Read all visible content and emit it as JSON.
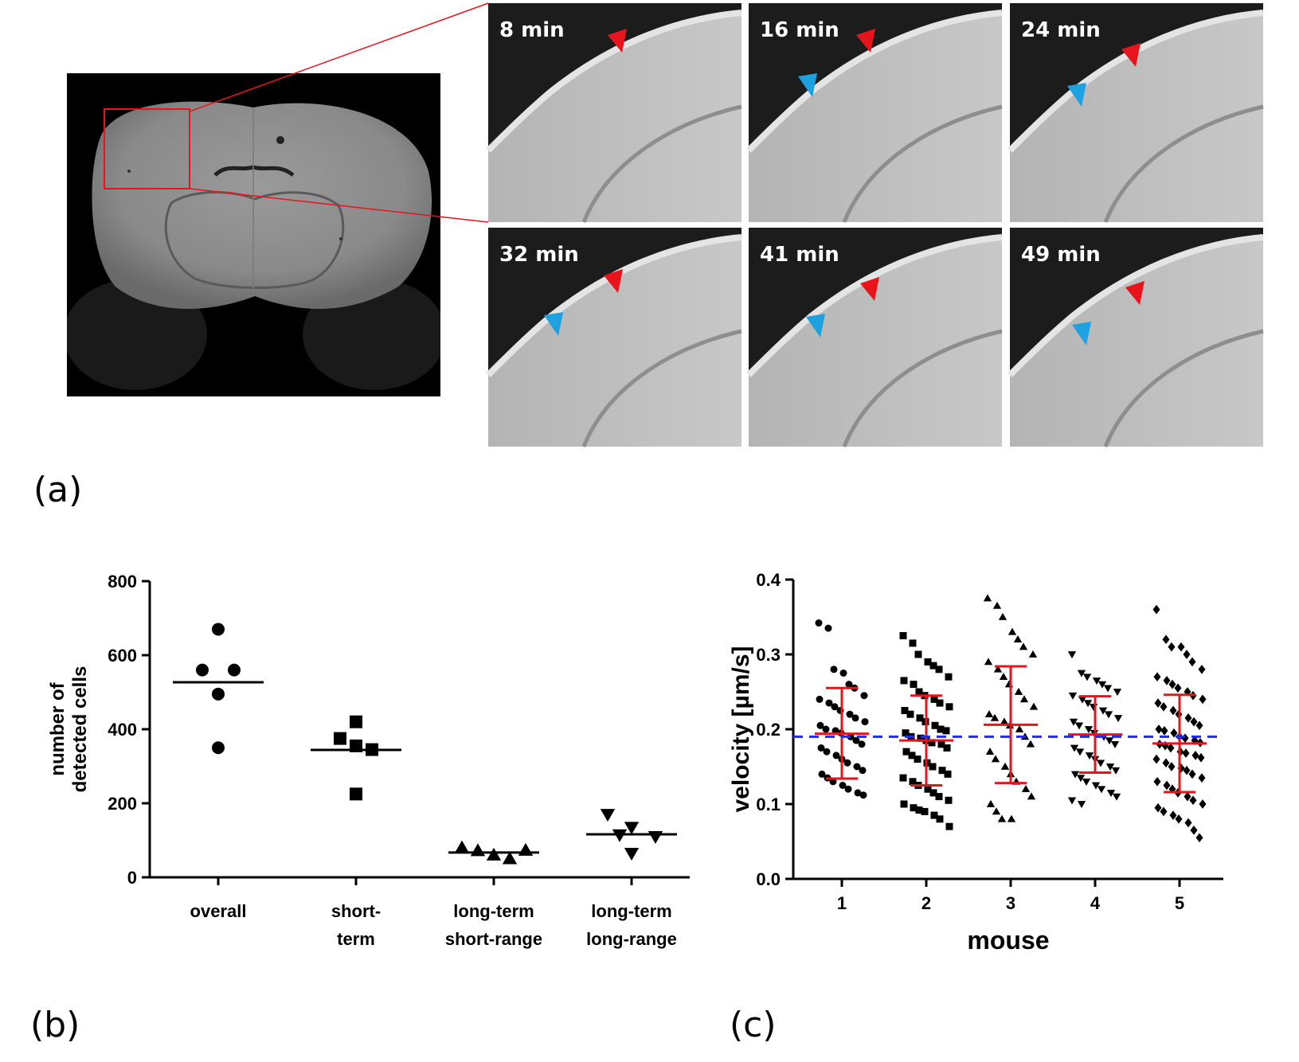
{
  "panel_labels": {
    "a": "(a)",
    "b": "(b)",
    "c": "(c)"
  },
  "colors": {
    "arrow_red": "#e8141c",
    "arrow_blue": "#1da1e0",
    "errorbar_red": "#e8141c",
    "reference_line_blue": "#1f2fe0",
    "zoom_box_red": "#e8141c"
  },
  "panel_a": {
    "time_frames": [
      {
        "label": "8 min",
        "red": true,
        "blue": false
      },
      {
        "label": "16 min",
        "red": true,
        "blue": true
      },
      {
        "label": "24 min",
        "red": true,
        "blue": true
      },
      {
        "label": "32 min",
        "red": true,
        "blue": true
      },
      {
        "label": "41 min",
        "red": true,
        "blue": true
      },
      {
        "label": "49 min",
        "red": true,
        "blue": true
      }
    ]
  },
  "chart_data": [
    {
      "id": "b",
      "type": "scatter",
      "title": "",
      "ylabel": [
        "number of",
        "detected cells"
      ],
      "xlabel": "",
      "ylim": [
        0,
        800
      ],
      "yticks": [
        0,
        200,
        400,
        600,
        800
      ],
      "categories": [
        {
          "lines": [
            "overall"
          ],
          "marker": "circle",
          "values": [
            670,
            560,
            560,
            495,
            350
          ],
          "mean": 527
        },
        {
          "lines": [
            "short-",
            "term"
          ],
          "marker": "square",
          "values": [
            420,
            375,
            355,
            345,
            225
          ],
          "mean": 344
        },
        {
          "lines": [
            "long-term",
            "short-range"
          ],
          "marker": "triangle-up",
          "values": [
            80,
            72,
            60,
            50,
            73
          ],
          "mean": 67
        },
        {
          "lines": [
            "long-term",
            "long-range"
          ],
          "marker": "triangle-down",
          "values": [
            170,
            135,
            115,
            110,
            65
          ],
          "mean": 116
        }
      ]
    },
    {
      "id": "c",
      "type": "scatter",
      "title": "",
      "ylabel": "velocity [µm/s]",
      "xlabel": "mouse",
      "ylim": [
        0,
        0.4
      ],
      "yticks": [
        "0.0",
        "0.1",
        "0.2",
        "0.3",
        "0.4"
      ],
      "reference_line": 0.19,
      "groups": [
        {
          "label": "1",
          "marker": "circle",
          "mean": 0.194,
          "sd_low": 0.134,
          "sd_high": 0.255,
          "values": [
            0.342,
            0.335,
            0.28,
            0.275,
            0.26,
            0.255,
            0.245,
            0.24,
            0.235,
            0.23,
            0.225,
            0.22,
            0.215,
            0.21,
            0.205,
            0.2,
            0.198,
            0.195,
            0.19,
            0.185,
            0.18,
            0.175,
            0.17,
            0.165,
            0.16,
            0.155,
            0.15,
            0.145,
            0.14,
            0.135,
            0.13,
            0.125,
            0.12,
            0.115,
            0.112
          ]
        },
        {
          "label": "2",
          "marker": "square",
          "mean": 0.185,
          "sd_low": 0.125,
          "sd_high": 0.245,
          "values": [
            0.325,
            0.315,
            0.3,
            0.29,
            0.285,
            0.28,
            0.27,
            0.265,
            0.26,
            0.25,
            0.245,
            0.24,
            0.235,
            0.23,
            0.225,
            0.22,
            0.215,
            0.21,
            0.205,
            0.2,
            0.198,
            0.195,
            0.19,
            0.188,
            0.185,
            0.182,
            0.18,
            0.175,
            0.17,
            0.165,
            0.16,
            0.155,
            0.15,
            0.145,
            0.14,
            0.135,
            0.13,
            0.125,
            0.12,
            0.115,
            0.11,
            0.105,
            0.1,
            0.095,
            0.092,
            0.09,
            0.085,
            0.08,
            0.07
          ]
        },
        {
          "label": "3",
          "marker": "triangle-up",
          "mean": 0.206,
          "sd_low": 0.128,
          "sd_high": 0.284,
          "values": [
            0.375,
            0.365,
            0.35,
            0.33,
            0.32,
            0.31,
            0.3,
            0.29,
            0.28,
            0.27,
            0.26,
            0.25,
            0.24,
            0.23,
            0.22,
            0.215,
            0.21,
            0.205,
            0.2,
            0.19,
            0.18,
            0.17,
            0.16,
            0.15,
            0.14,
            0.13,
            0.12,
            0.11,
            0.1,
            0.09,
            0.08,
            0.08
          ]
        },
        {
          "label": "4",
          "marker": "triangle-down",
          "mean": 0.193,
          "sd_low": 0.142,
          "sd_high": 0.244,
          "values": [
            0.3,
            0.275,
            0.27,
            0.265,
            0.26,
            0.255,
            0.25,
            0.245,
            0.24,
            0.235,
            0.23,
            0.225,
            0.22,
            0.215,
            0.21,
            0.205,
            0.2,
            0.195,
            0.19,
            0.185,
            0.18,
            0.175,
            0.17,
            0.165,
            0.16,
            0.155,
            0.15,
            0.145,
            0.14,
            0.135,
            0.13,
            0.125,
            0.12,
            0.115,
            0.11,
            0.105,
            0.1
          ]
        },
        {
          "label": "5",
          "marker": "diamond",
          "mean": 0.181,
          "sd_low": 0.116,
          "sd_high": 0.246,
          "values": [
            0.36,
            0.32,
            0.31,
            0.31,
            0.3,
            0.29,
            0.28,
            0.27,
            0.265,
            0.26,
            0.255,
            0.25,
            0.245,
            0.24,
            0.235,
            0.23,
            0.225,
            0.22,
            0.215,
            0.21,
            0.205,
            0.2,
            0.198,
            0.195,
            0.19,
            0.188,
            0.185,
            0.182,
            0.18,
            0.178,
            0.175,
            0.17,
            0.168,
            0.165,
            0.162,
            0.16,
            0.155,
            0.15,
            0.148,
            0.145,
            0.14,
            0.135,
            0.13,
            0.125,
            0.12,
            0.115,
            0.11,
            0.105,
            0.1,
            0.095,
            0.09,
            0.085,
            0.08,
            0.075,
            0.065,
            0.055
          ]
        }
      ]
    }
  ]
}
